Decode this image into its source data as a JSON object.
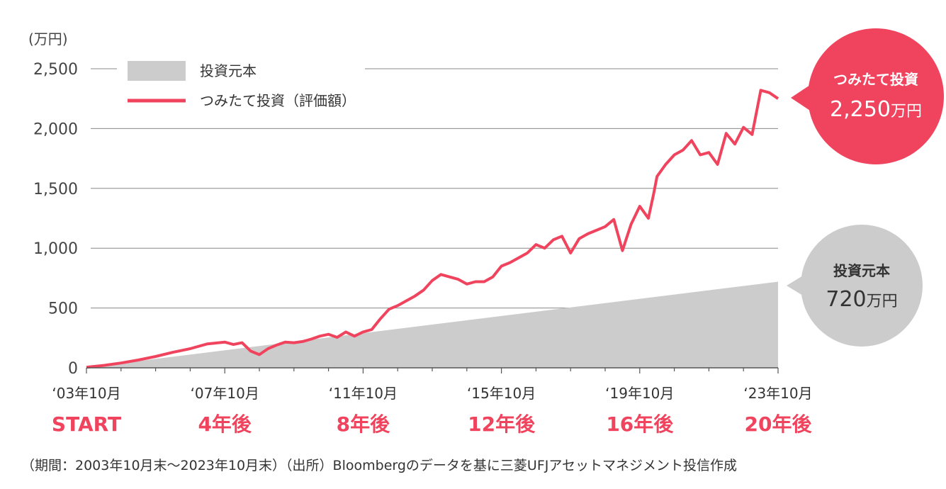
{
  "colors": {
    "principal_fill": "#cccccc",
    "valuation_line": "#f0445e",
    "grid": "#888888",
    "milestone_text": "#f0445e",
    "valuation_bubble": "#f0445e",
    "principal_bubble": "#cccccc"
  },
  "chart_data": {
    "type": "line",
    "yunit": "(万円)",
    "ylim": [
      0,
      2500
    ],
    "yticks": [
      0,
      500,
      1000,
      1500,
      2000,
      2500
    ],
    "ytick_labels": [
      "0",
      "500",
      "1,000",
      "1,500",
      "2,000",
      "2,500"
    ],
    "xlim": [
      2003.75,
      2023.75
    ],
    "xtick_positions": [
      2003.75,
      2007.75,
      2011.75,
      2015.75,
      2019.75,
      2023.75
    ],
    "xtick_labels": [
      "‘03年10月",
      "‘07年10月",
      "‘11年10月",
      "‘15年10月",
      "‘19年10月",
      "‘23年10月"
    ],
    "milestones": [
      "START",
      "4年後",
      "8年後",
      "12年後",
      "16年後",
      "20年後"
    ],
    "legend": [
      {
        "label": "投資元本",
        "type": "area"
      },
      {
        "label": "つみたて投資（評価額）",
        "type": "line"
      }
    ],
    "series": [
      {
        "name": "投資元本",
        "type": "area",
        "x": [
          2003.75,
          2023.75
        ],
        "y": [
          3,
          720
        ]
      },
      {
        "name": "つみたて投資（評価額）",
        "type": "line",
        "x": [
          2003.75,
          2004.25,
          2004.75,
          2005.25,
          2005.75,
          2006.25,
          2006.75,
          2007.25,
          2007.75,
          2008.0,
          2008.25,
          2008.5,
          2008.75,
          2009.0,
          2009.25,
          2009.5,
          2009.75,
          2010.0,
          2010.25,
          2010.5,
          2010.75,
          2011.0,
          2011.25,
          2011.5,
          2011.75,
          2012.0,
          2012.25,
          2012.5,
          2012.75,
          2013.0,
          2013.25,
          2013.5,
          2013.75,
          2014.0,
          2014.25,
          2014.5,
          2014.75,
          2015.0,
          2015.25,
          2015.5,
          2015.75,
          2016.0,
          2016.25,
          2016.5,
          2016.75,
          2017.0,
          2017.25,
          2017.5,
          2017.75,
          2018.0,
          2018.25,
          2018.5,
          2018.75,
          2019.0,
          2019.25,
          2019.5,
          2019.75,
          2020.0,
          2020.15,
          2020.25,
          2020.5,
          2020.75,
          2021.0,
          2021.25,
          2021.5,
          2021.75,
          2022.0,
          2022.25,
          2022.5,
          2022.75,
          2023.0,
          2023.25,
          2023.5,
          2023.75
        ],
        "y": [
          5,
          20,
          40,
          65,
          95,
          130,
          160,
          200,
          215,
          195,
          210,
          140,
          110,
          160,
          190,
          215,
          210,
          220,
          240,
          265,
          280,
          255,
          300,
          265,
          300,
          320,
          410,
          490,
          520,
          560,
          600,
          650,
          730,
          780,
          760,
          740,
          700,
          720,
          720,
          760,
          850,
          880,
          920,
          960,
          1030,
          1000,
          1070,
          1100,
          960,
          1080,
          1120,
          1150,
          1180,
          1240,
          980,
          1200,
          1350,
          1250,
          1450,
          1600,
          1700,
          1780,
          1820,
          1900,
          1780,
          1800,
          1700,
          1960,
          1870,
          2010,
          1950,
          2320,
          2300,
          2250
        ]
      }
    ],
    "annotations": [
      {
        "title": "つみたて投資",
        "value": "2,250",
        "unit": "万円",
        "series": "つみたて投資（評価額）"
      },
      {
        "title": "投資元本",
        "value": "720",
        "unit": "万円",
        "series": "投資元本"
      }
    ]
  },
  "source_note": "（期間：2003年10月末〜2023年10月末）（出所）Bloombergのデータを基に三菱UFJアセットマネジメント投信作成"
}
